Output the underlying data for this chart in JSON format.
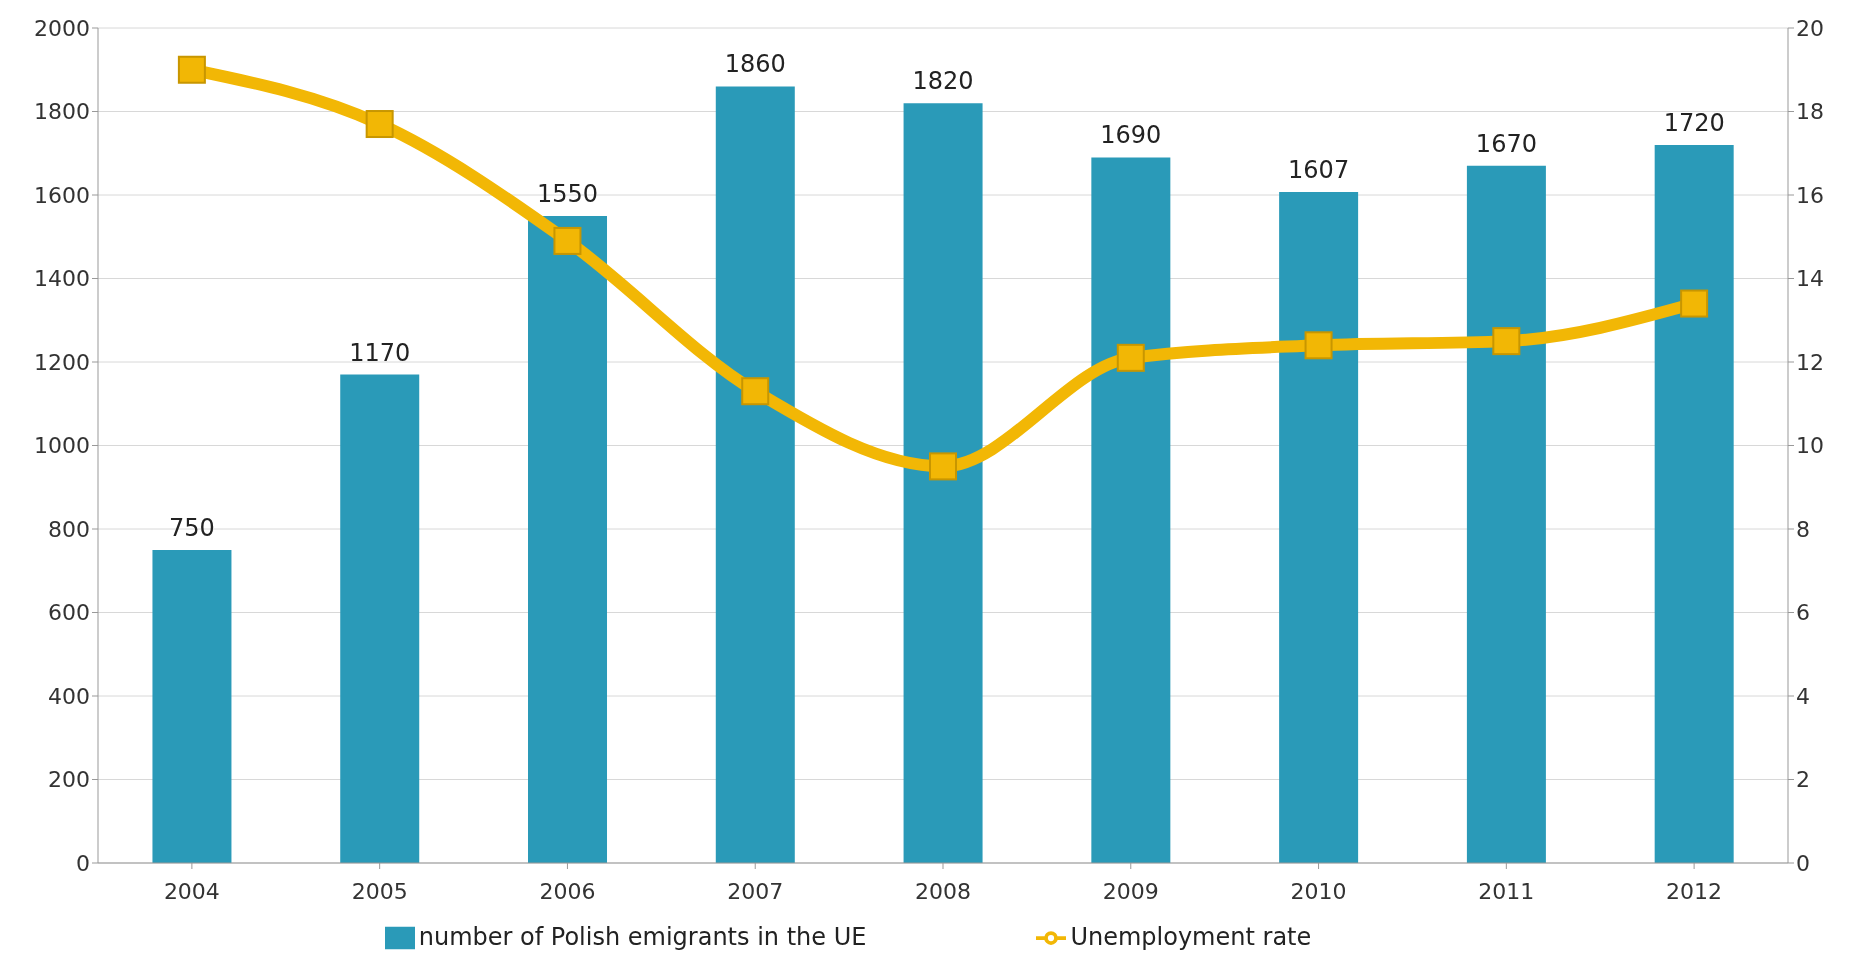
{
  "chart_data": {
    "type": "bar",
    "categories": [
      "2004",
      "2005",
      "2006",
      "2007",
      "2008",
      "2009",
      "2010",
      "2011",
      "2012"
    ],
    "series": [
      {
        "name": "number of Polish emigrants in the UE",
        "color": "#2a9ab8",
        "values": [
          750,
          1170,
          1550,
          1860,
          1820,
          1690,
          1607,
          1670,
          1720
        ],
        "value_labels": [
          "750",
          "1170",
          "1550",
          "1860",
          "1820",
          "1690",
          "1607",
          "1670",
          "1720"
        ]
      },
      {
        "name": "Unemployment rate",
        "type": "line",
        "axis": "y2",
        "color": "#f2b705",
        "values": [
          19.0,
          17.7,
          14.9,
          11.3,
          9.5,
          12.1,
          12.4,
          12.5,
          13.4
        ]
      }
    ],
    "ylim": [
      0,
      2000
    ],
    "yticks": [
      0,
      200,
      400,
      600,
      800,
      1000,
      1200,
      1400,
      1600,
      1800,
      2000
    ],
    "y2lim": [
      0,
      20
    ],
    "y2ticks": [
      0,
      2,
      4,
      6,
      8,
      10,
      12,
      14,
      16,
      18,
      20
    ],
    "grid": "y",
    "legend": "bottom",
    "marker": "square",
    "line_style": "solid"
  }
}
